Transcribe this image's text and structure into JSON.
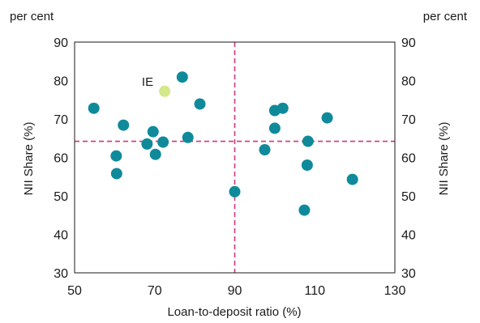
{
  "chart_data": {
    "type": "scatter",
    "unit_left": "per cent",
    "unit_right": "per cent",
    "xlabel": "Loan-to-deposit ratio (%)",
    "ylabel": "NII Share (%)",
    "ylabel_right": "NII Share (%)",
    "xlim": [
      50,
      130
    ],
    "ylim": [
      30,
      90
    ],
    "x_ticks": [
      50,
      70,
      90,
      110,
      130
    ],
    "y_ticks": [
      30,
      40,
      50,
      60,
      70,
      80,
      90
    ],
    "reference_lines": {
      "x": 90,
      "y": 64.2
    },
    "colors": {
      "points": "#0e8a9b",
      "highlight": "#d4e88a",
      "reference": "#d1357c",
      "frame": "#1a1a1a"
    },
    "highlight": {
      "label": "IE",
      "x": 72.5,
      "y": 77.2
    },
    "points": [
      {
        "x": 54.8,
        "y": 72.8
      },
      {
        "x": 60.4,
        "y": 60.4
      },
      {
        "x": 60.5,
        "y": 55.8
      },
      {
        "x": 62.2,
        "y": 68.4
      },
      {
        "x": 68.1,
        "y": 63.5
      },
      {
        "x": 69.6,
        "y": 66.7
      },
      {
        "x": 70.2,
        "y": 60.8
      },
      {
        "x": 72.1,
        "y": 64.0
      },
      {
        "x": 76.9,
        "y": 80.9
      },
      {
        "x": 78.3,
        "y": 65.2
      },
      {
        "x": 81.3,
        "y": 73.9
      },
      {
        "x": 90.0,
        "y": 51.1
      },
      {
        "x": 97.5,
        "y": 62.0
      },
      {
        "x": 100.0,
        "y": 72.2
      },
      {
        "x": 100.0,
        "y": 67.6
      },
      {
        "x": 102.0,
        "y": 72.8
      },
      {
        "x": 107.4,
        "y": 46.3
      },
      {
        "x": 108.3,
        "y": 64.2
      },
      {
        "x": 108.1,
        "y": 58.0
      },
      {
        "x": 113.1,
        "y": 70.3
      },
      {
        "x": 119.4,
        "y": 54.3
      }
    ]
  }
}
